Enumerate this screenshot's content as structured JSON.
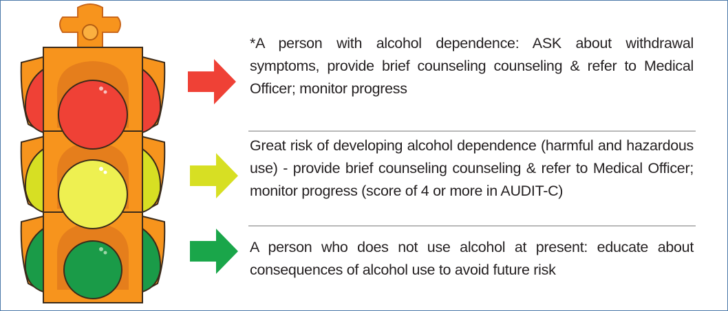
{
  "items": [
    {
      "text": "*A person with alcohol dependence: ASK about withdrawal symptoms, provide brief counseling counseling & refer to Medical Officer; monitor progress"
    },
    {
      "text": "Great risk of developing alcohol dependence (harmful and hazardous use) -  provide brief counseling counseling & refer to Medical Officer; monitor progress (score of 4 or more in AUDIT-C)"
    },
    {
      "text": "A person who does not use alcohol at present: educate about consequences of alcohol use to avoid future risk"
    }
  ]
}
